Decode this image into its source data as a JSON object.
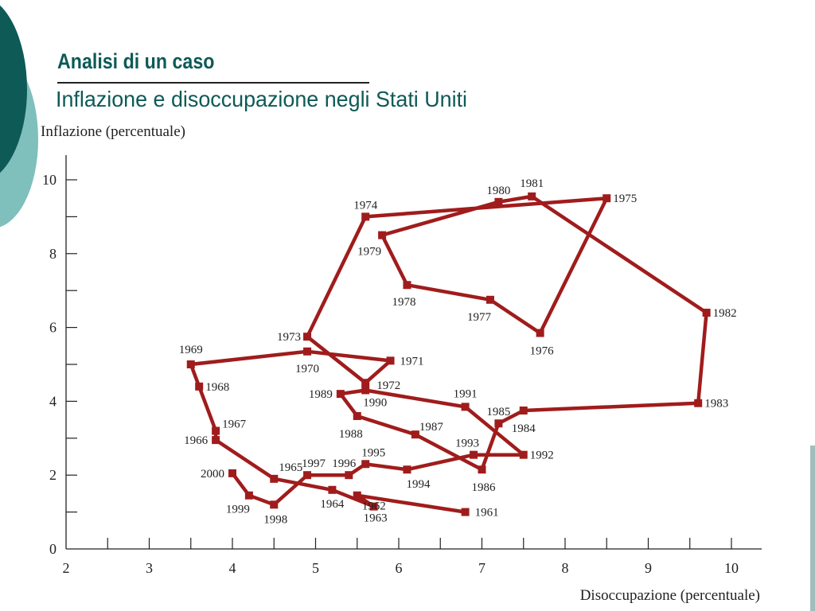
{
  "slide": {
    "title": "Analisi di un caso",
    "subtitle": "Inflazione e disoccupazione negli Stati Uniti",
    "accent_color": "#0d5a57",
    "accent_light": "#7fbfbc"
  },
  "chart_data": {
    "type": "line",
    "xlabel": "Disoccupazione (percentuale)",
    "ylabel": "Inflazione (percentuale)",
    "xlim": [
      2,
      10
    ],
    "ylim": [
      0,
      10
    ],
    "x_ticks": [
      "2",
      "3",
      "4",
      "5",
      "6",
      "7",
      "8",
      "9",
      "10"
    ],
    "y_ticks": [
      "0",
      "2",
      "4",
      "6",
      "8",
      "10"
    ],
    "grid": false,
    "line_color": "#a01c1c",
    "points": [
      {
        "year": "1961",
        "x": 6.8,
        "y": 1.0
      },
      {
        "year": "1962",
        "x": 5.5,
        "y": 1.45
      },
      {
        "year": "1963",
        "x": 5.7,
        "y": 1.15
      },
      {
        "year": "1964",
        "x": 5.2,
        "y": 1.6
      },
      {
        "year": "1965",
        "x": 4.5,
        "y": 1.9
      },
      {
        "year": "1966",
        "x": 3.8,
        "y": 2.95
      },
      {
        "year": "1967",
        "x": 3.8,
        "y": 3.2
      },
      {
        "year": "1968",
        "x": 3.6,
        "y": 4.4
      },
      {
        "year": "1969",
        "x": 3.5,
        "y": 5.0
      },
      {
        "year": "1970",
        "x": 4.9,
        "y": 5.35
      },
      {
        "year": "1971",
        "x": 5.9,
        "y": 5.1
      },
      {
        "year": "1972",
        "x": 5.6,
        "y": 4.5
      },
      {
        "year": "1973",
        "x": 4.9,
        "y": 5.75
      },
      {
        "year": "1974",
        "x": 5.6,
        "y": 9.0
      },
      {
        "year": "1975",
        "x": 8.5,
        "y": 9.5
      },
      {
        "year": "1976",
        "x": 7.7,
        "y": 5.85
      },
      {
        "year": "1977",
        "x": 7.1,
        "y": 6.75
      },
      {
        "year": "1978",
        "x": 6.1,
        "y": 7.15
      },
      {
        "year": "1979",
        "x": 5.8,
        "y": 8.5
      },
      {
        "year": "1980",
        "x": 7.2,
        "y": 9.4
      },
      {
        "year": "1981",
        "x": 7.6,
        "y": 9.55
      },
      {
        "year": "1982",
        "x": 9.7,
        "y": 6.4
      },
      {
        "year": "1983",
        "x": 9.6,
        "y": 3.95
      },
      {
        "year": "1984",
        "x": 7.5,
        "y": 3.75
      },
      {
        "year": "1985",
        "x": 7.2,
        "y": 3.4
      },
      {
        "year": "1986",
        "x": 7.0,
        "y": 2.15
      },
      {
        "year": "1987",
        "x": 6.2,
        "y": 3.1
      },
      {
        "year": "1988",
        "x": 5.5,
        "y": 3.6
      },
      {
        "year": "1989",
        "x": 5.3,
        "y": 4.2
      },
      {
        "year": "1990",
        "x": 5.6,
        "y": 4.3
      },
      {
        "year": "1991",
        "x": 6.8,
        "y": 3.85
      },
      {
        "year": "1992",
        "x": 7.5,
        "y": 2.55
      },
      {
        "year": "1993",
        "x": 6.9,
        "y": 2.55
      },
      {
        "year": "1994",
        "x": 6.1,
        "y": 2.15
      },
      {
        "year": "1995",
        "x": 5.6,
        "y": 2.3
      },
      {
        "year": "1996",
        "x": 5.4,
        "y": 2.0
      },
      {
        "year": "1997",
        "x": 4.9,
        "y": 2.0
      },
      {
        "year": "1998",
        "x": 4.5,
        "y": 1.2
      },
      {
        "year": "1999",
        "x": 4.2,
        "y": 1.45
      },
      {
        "year": "2000",
        "x": 4.0,
        "y": 2.05
      }
    ]
  }
}
